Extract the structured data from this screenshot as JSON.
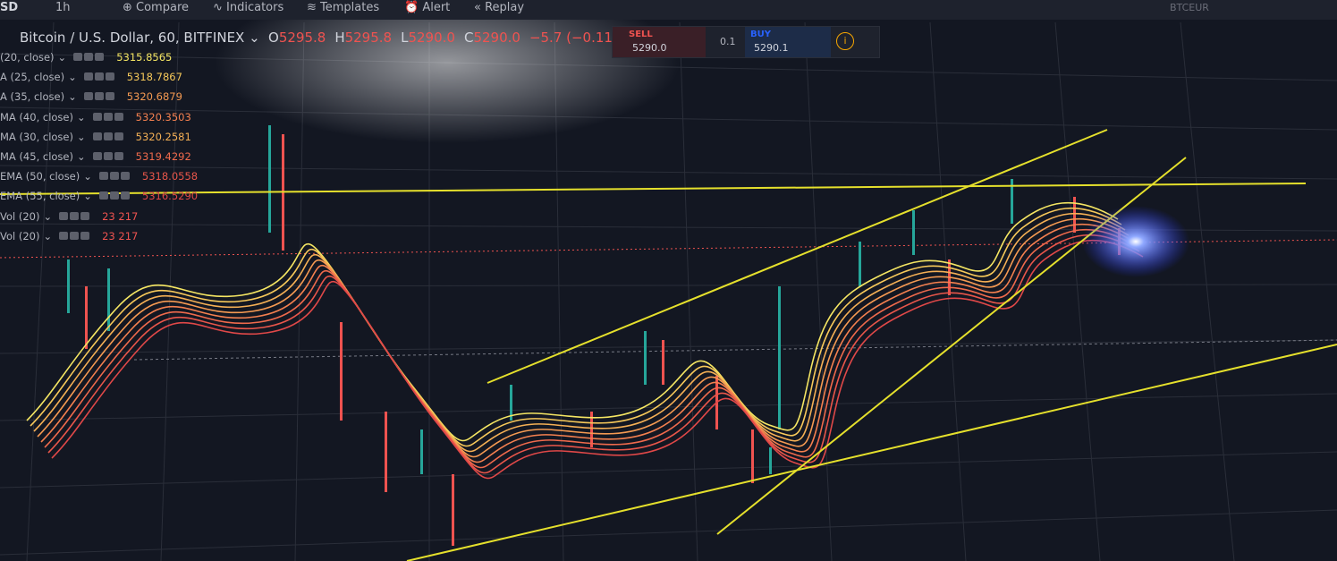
{
  "toolbar": {
    "symbol": "SD",
    "interval": "1h",
    "compare": "Compare",
    "indicators": "Indicators",
    "templates": "Templates",
    "alert": "Alert",
    "replay": "Replay",
    "right_symbol": "BTCEUR"
  },
  "header": {
    "title": "Bitcoin / U.S. Dollar, 60, BITFINEX",
    "ohlc": [
      {
        "key": "O",
        "value": "5295.8"
      },
      {
        "key": "H",
        "value": "5295.8"
      },
      {
        "key": "L",
        "value": "5290.0"
      },
      {
        "key": "C",
        "value": "5290.0"
      }
    ],
    "change": "−5.7 (−0.11%"
  },
  "trade": {
    "sell_label": "SELL",
    "sell_price": "5290.0",
    "quantity": "0.1",
    "buy_label": "BUY",
    "buy_price": "5290.1"
  },
  "legend": [
    {
      "label": "(20, close)",
      "value": "5315.8565",
      "color": "#f5e663"
    },
    {
      "label": "A (25, close)",
      "value": "5318.7867",
      "color": "#f7c95a"
    },
    {
      "label": "A (35, close)",
      "value": "5320.6879",
      "color": "#f59a52"
    },
    {
      "label": "MA (40, close)",
      "value": "5320.3503",
      "color": "#f4804f"
    },
    {
      "label": "MA (30, close)",
      "value": "5320.2581",
      "color": "#f5b055"
    },
    {
      "label": "MA (45, close)",
      "value": "5319.4292",
      "color": "#ef6a4c"
    },
    {
      "label": "EMA (50, close)",
      "value": "5318.0558",
      "color": "#e9564a"
    },
    {
      "label": "EMA (55, close)",
      "value": "5316.5290",
      "color": "#e04848"
    },
    {
      "label": "Vol (20)",
      "value": "23 217",
      "color": "#ef5350"
    },
    {
      "label": "Vol (20)",
      "value": "23 217",
      "color": "#ef5350"
    }
  ]
}
